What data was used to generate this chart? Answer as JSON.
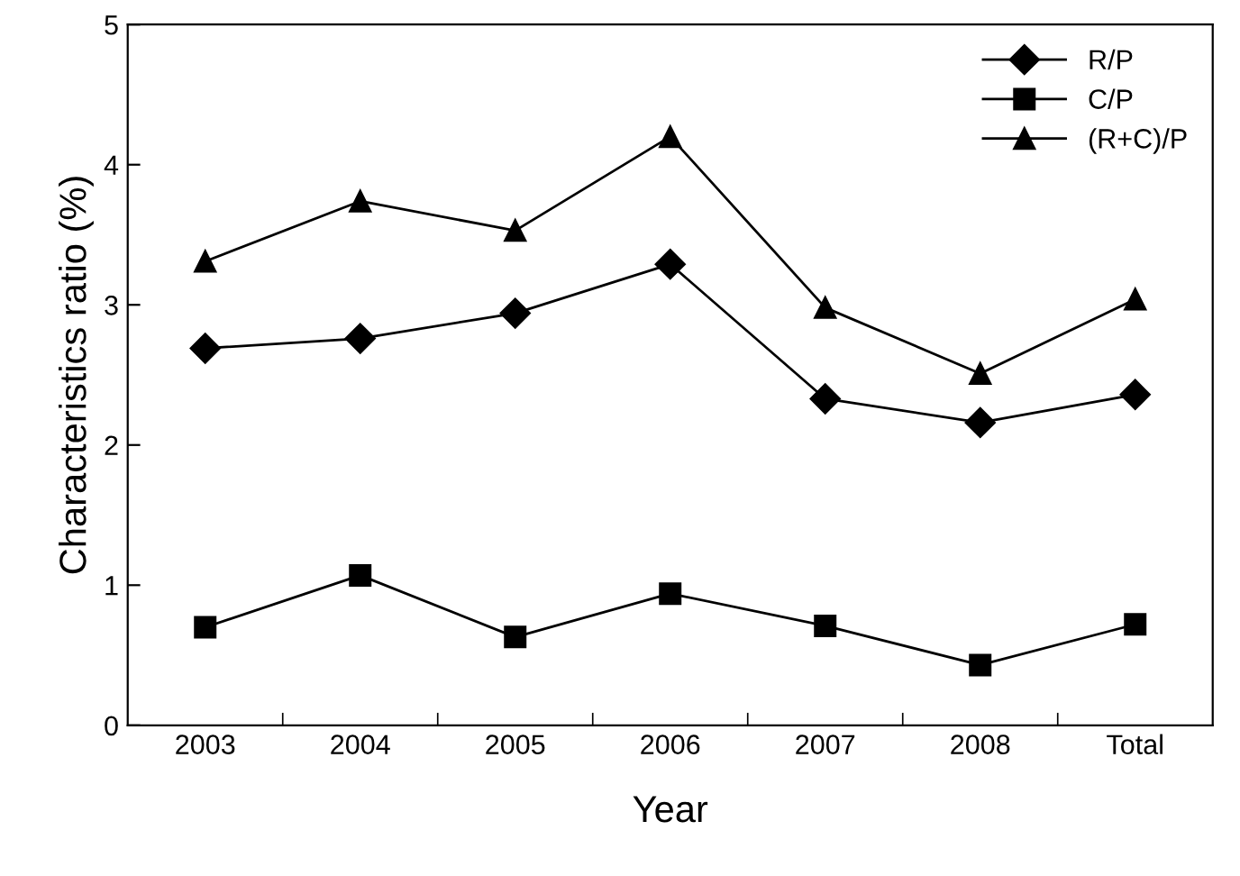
{
  "chart_data": {
    "type": "line",
    "xlabel": "Year",
    "ylabel": "Characteristics ratio (%)",
    "categories": [
      "2003",
      "2004",
      "2005",
      "2006",
      "2007",
      "2008",
      "Total"
    ],
    "series": [
      {
        "name": "R/P",
        "color": "#000000",
        "marker": "diamond",
        "values": [
          2.69,
          2.76,
          2.94,
          3.29,
          2.33,
          2.16,
          2.36
        ]
      },
      {
        "name": "C/P",
        "color": "#000000",
        "marker": "square",
        "values": [
          0.7,
          1.07,
          0.63,
          0.94,
          0.71,
          0.43,
          0.72
        ]
      },
      {
        "name": "(R+C)/P",
        "color": "#000000",
        "marker": "triangle",
        "values": [
          3.31,
          3.74,
          3.53,
          4.2,
          2.98,
          2.51,
          3.04
        ]
      }
    ],
    "ylim": [
      0,
      5
    ],
    "yticks": [
      0,
      1,
      2,
      3,
      4,
      5
    ],
    "grid": false,
    "legend": "top right",
    "line_style": "solid"
  }
}
